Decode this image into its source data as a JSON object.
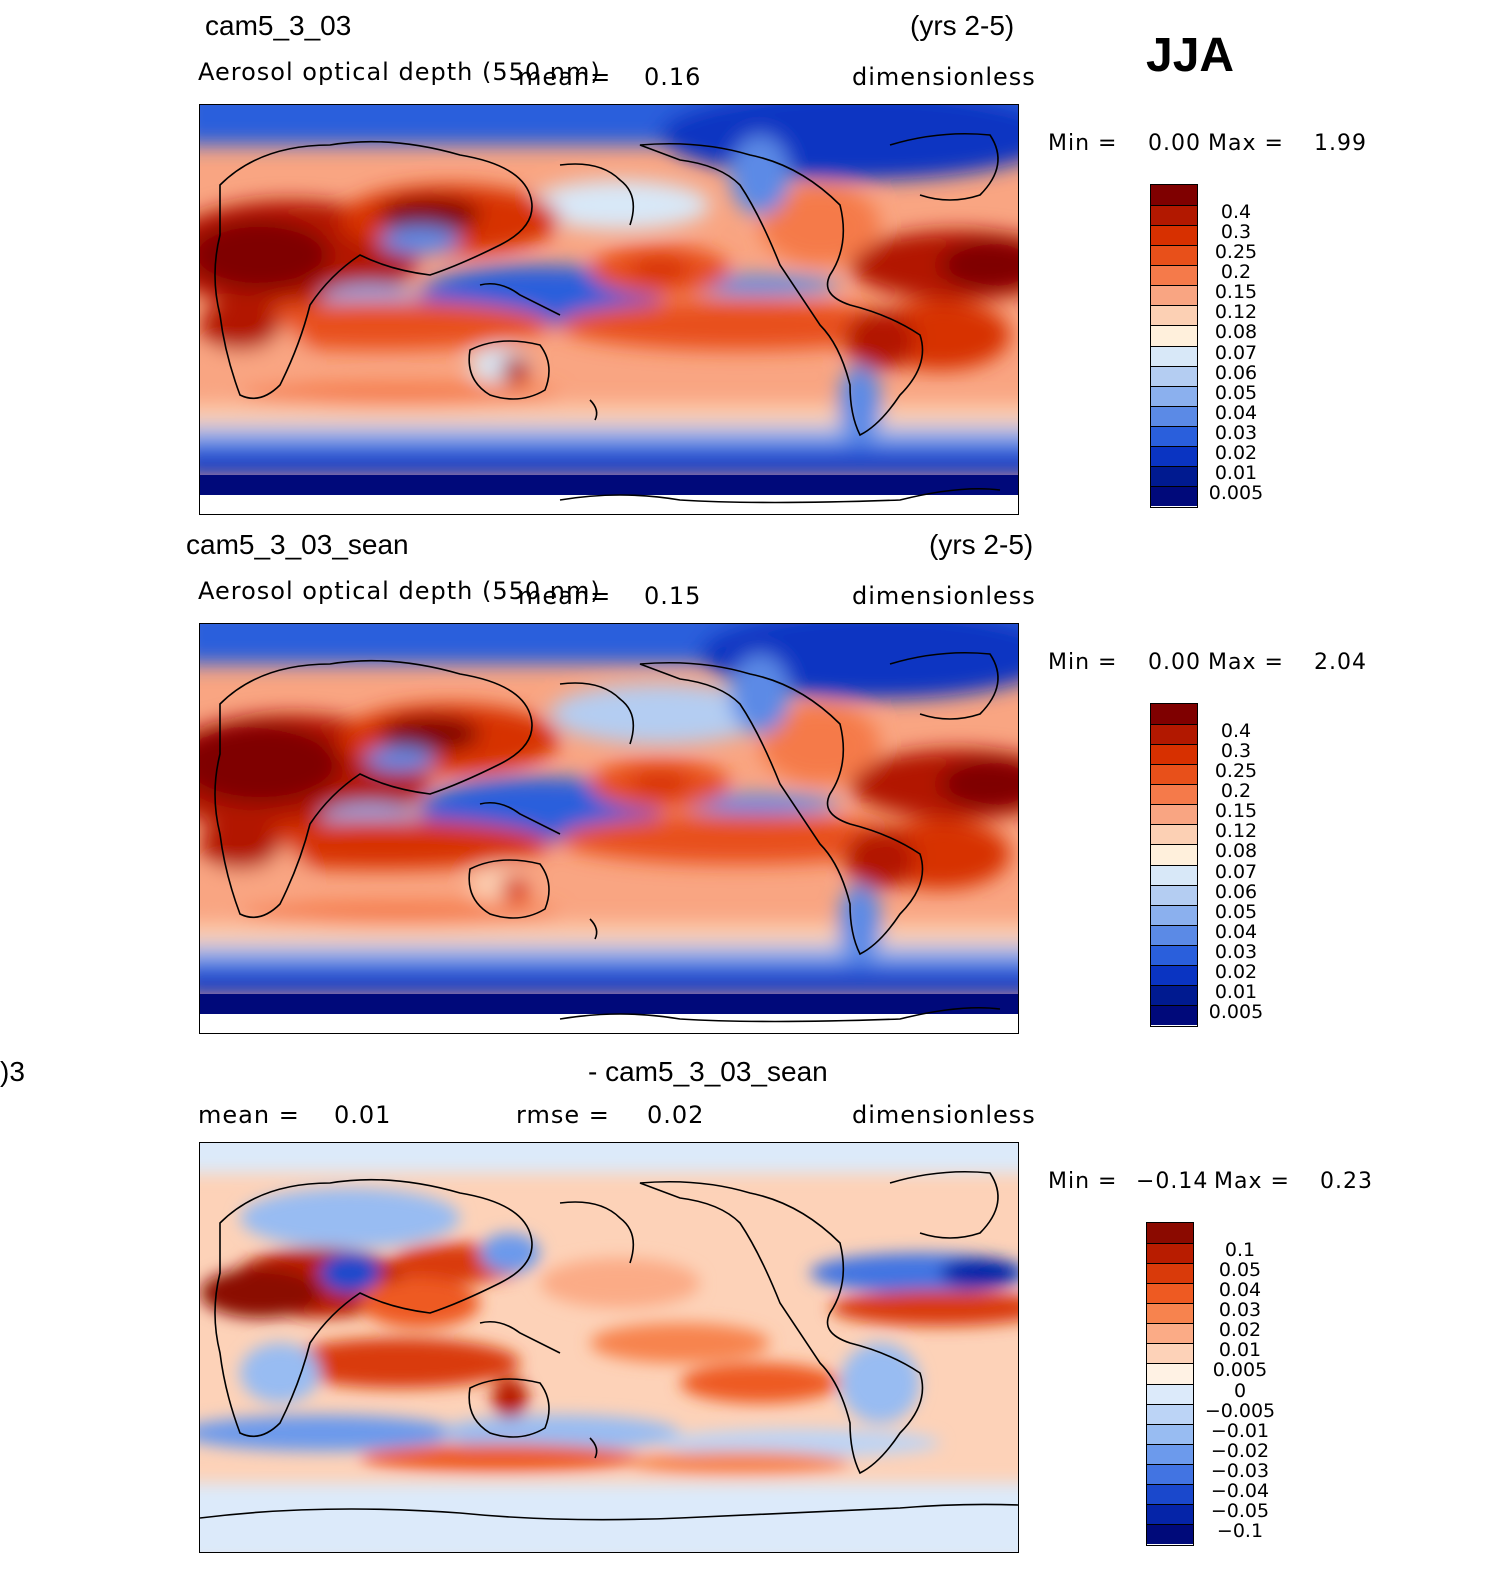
{
  "season": "JJA",
  "panels": [
    {
      "case": "cam5_3_03",
      "years": "(yrs 2-5)",
      "variable": "Aerosol optical depth (550 nm)",
      "mean_label": "mean=",
      "mean_value": "0.16",
      "units": "dimensionless",
      "min_label": "Min =",
      "min_value": "0.00",
      "max_label": "Max =",
      "max_value": "1.99"
    },
    {
      "case": "cam5_3_03_sean",
      "years": "(yrs 2-5)",
      "variable": "Aerosol optical depth (550 nm)",
      "mean_label": "mean=",
      "mean_value": "0.15",
      "units": "dimensionless",
      "min_label": "Min =",
      "min_value": "0.00",
      "max_label": "Max =",
      "max_value": "2.04"
    },
    {
      "case_left": ")3",
      "case_right": "- cam5_3_03_sean",
      "mean_label": "mean =",
      "mean_value": "0.01",
      "rmse_label": "rmse =",
      "rmse_value": "0.02",
      "units": "dimensionless",
      "min_label": "Min =",
      "min_value": "−0.14",
      "max_label": "Max =",
      "max_value": "0.23"
    }
  ],
  "colorbar_abs": {
    "labels": [
      "0.4",
      "0.3",
      "0.25",
      "0.2",
      "0.15",
      "0.12",
      "0.08",
      "0.07",
      "0.06",
      "0.05",
      "0.04",
      "0.03",
      "0.02",
      "0.01",
      "0.005"
    ],
    "colors": [
      "#7f0000",
      "#b21800",
      "#d73000",
      "#e8501a",
      "#f57a4a",
      "#f9a582",
      "#fcd0b4",
      "#fff0dc",
      "#d8e8f8",
      "#b4cdf2",
      "#8bb0ee",
      "#5b8ae6",
      "#2a5fdc",
      "#0a34c2",
      "#001a90",
      "#00097a"
    ]
  },
  "colorbar_diff": {
    "labels": [
      "0.1",
      "0.05",
      "0.04",
      "0.03",
      "0.02",
      "0.01",
      "0.005",
      "0",
      "−0.005",
      "−0.01",
      "−0.02",
      "−0.03",
      "−0.04",
      "−0.05",
      "−0.1"
    ],
    "colors": [
      "#8b0a00",
      "#b81c00",
      "#d93a0a",
      "#ee5a22",
      "#f7834e",
      "#fbab86",
      "#fdd2b8",
      "#fff2e4",
      "#dceafa",
      "#bcd4f6",
      "#98bcf2",
      "#6c9aec",
      "#4274e2",
      "#1a48cc",
      "#0524a8",
      "#000a7a"
    ]
  }
}
